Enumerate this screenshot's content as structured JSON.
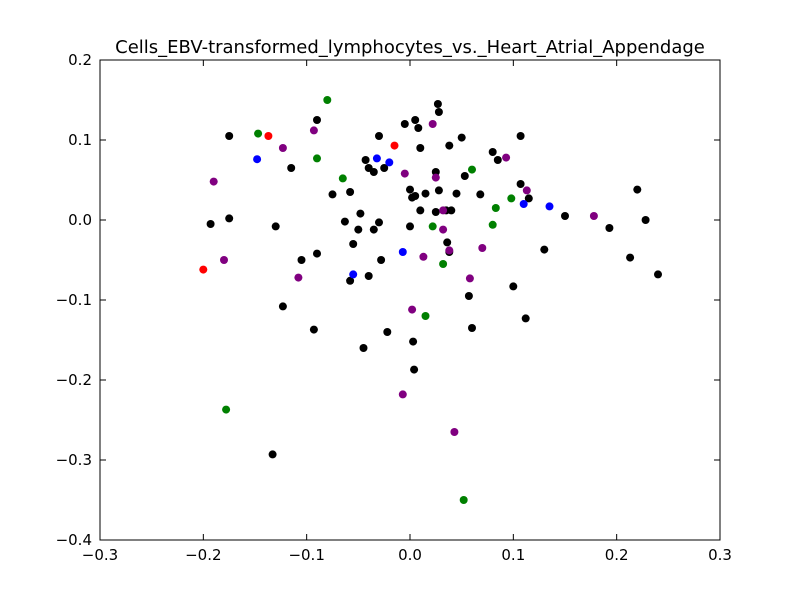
{
  "chart_data": {
    "type": "scatter",
    "title": "Cells_EBV-transformed_lymphocytes_vs._Heart_Atrial_Appendage",
    "xlabel": "",
    "ylabel": "",
    "xlim": [
      -0.3,
      0.3
    ],
    "ylim": [
      -0.4,
      0.2
    ],
    "grid": false,
    "x_ticks": [
      -0.3,
      -0.2,
      -0.1,
      0.0,
      0.1,
      0.2,
      0.3
    ],
    "x_tick_labels": [
      "−0.3",
      "−0.2",
      "−0.1",
      "0.0",
      "0.1",
      "0.2",
      "0.3"
    ],
    "y_ticks": [
      -0.4,
      -0.3,
      -0.2,
      -0.1,
      0.0,
      0.1,
      0.2
    ],
    "y_tick_labels": [
      "−0.4",
      "−0.3",
      "−0.2",
      "−0.1",
      "0.0",
      "0.1",
      "0.2"
    ],
    "series": [
      {
        "color": "#000000",
        "points": [
          [
            -0.175,
            0.105
          ],
          [
            -0.09,
            0.125
          ],
          [
            -0.115,
            0.065
          ],
          [
            -0.193,
            -0.005
          ],
          [
            -0.175,
            0.002
          ],
          [
            -0.13,
            -0.008
          ],
          [
            -0.105,
            -0.05
          ],
          [
            -0.09,
            -0.042
          ],
          [
            -0.123,
            -0.108
          ],
          [
            -0.093,
            -0.137
          ],
          [
            -0.133,
            -0.293
          ],
          [
            -0.075,
            0.032
          ],
          [
            -0.058,
            0.035
          ],
          [
            -0.063,
            -0.002
          ],
          [
            -0.05,
            -0.012
          ],
          [
            -0.048,
            0.008
          ],
          [
            -0.043,
            0.075
          ],
          [
            -0.04,
            0.065
          ],
          [
            -0.035,
            0.06
          ],
          [
            -0.03,
            0.105
          ],
          [
            -0.035,
            -0.012
          ],
          [
            -0.03,
            -0.003
          ],
          [
            -0.055,
            -0.03
          ],
          [
            -0.058,
            -0.076
          ],
          [
            -0.04,
            -0.07
          ],
          [
            -0.028,
            -0.05
          ],
          [
            -0.045,
            -0.16
          ],
          [
            -0.022,
            -0.14
          ],
          [
            -0.025,
            0.065
          ],
          [
            -0.005,
            0.12
          ],
          [
            0.0,
            0.038
          ],
          [
            0.002,
            0.028
          ],
          [
            0.005,
            0.03
          ],
          [
            0.0,
            -0.008
          ],
          [
            0.005,
            0.125
          ],
          [
            0.008,
            0.115
          ],
          [
            0.01,
            0.09
          ],
          [
            0.01,
            0.012
          ],
          [
            0.015,
            0.033
          ],
          [
            0.003,
            -0.152
          ],
          [
            0.004,
            -0.187
          ],
          [
            0.025,
            0.06
          ],
          [
            0.025,
            0.01
          ],
          [
            0.027,
            0.145
          ],
          [
            0.028,
            0.135
          ],
          [
            0.028,
            0.037
          ],
          [
            0.035,
            0.012
          ],
          [
            0.036,
            -0.028
          ],
          [
            0.04,
            0.012
          ],
          [
            0.038,
            0.093
          ],
          [
            0.045,
            0.033
          ],
          [
            0.05,
            0.103
          ],
          [
            0.053,
            0.055
          ],
          [
            0.057,
            -0.095
          ],
          [
            0.06,
            -0.135
          ],
          [
            0.068,
            0.032
          ],
          [
            0.038,
            -0.04
          ],
          [
            0.08,
            0.085
          ],
          [
            0.085,
            0.075
          ],
          [
            0.1,
            -0.083
          ],
          [
            0.107,
            0.105
          ],
          [
            0.107,
            0.045
          ],
          [
            0.112,
            -0.123
          ],
          [
            0.115,
            0.027
          ],
          [
            0.13,
            -0.037
          ],
          [
            0.15,
            0.005
          ],
          [
            0.193,
            -0.01
          ],
          [
            0.213,
            -0.047
          ],
          [
            0.22,
            0.038
          ],
          [
            0.228,
            0.0
          ],
          [
            0.24,
            -0.068
          ]
        ]
      },
      {
        "color": "#008000",
        "points": [
          [
            -0.147,
            0.108
          ],
          [
            -0.08,
            0.15
          ],
          [
            -0.09,
            0.077
          ],
          [
            -0.065,
            0.052
          ],
          [
            -0.178,
            -0.237
          ],
          [
            0.015,
            -0.12
          ],
          [
            0.022,
            -0.008
          ],
          [
            0.032,
            -0.055
          ],
          [
            0.06,
            0.063
          ],
          [
            0.052,
            -0.35
          ],
          [
            0.08,
            -0.006
          ],
          [
            0.083,
            0.015
          ],
          [
            0.098,
            0.027
          ]
        ]
      },
      {
        "color": "#0000ff",
        "points": [
          [
            -0.148,
            0.076
          ],
          [
            -0.032,
            0.077
          ],
          [
            -0.02,
            0.072
          ],
          [
            -0.055,
            -0.068
          ],
          [
            -0.007,
            -0.04
          ],
          [
            0.11,
            0.02
          ],
          [
            0.135,
            0.017
          ]
        ]
      },
      {
        "color": "#ff0000",
        "points": [
          [
            -0.2,
            -0.062
          ],
          [
            -0.137,
            0.105
          ],
          [
            -0.015,
            0.093
          ]
        ]
      },
      {
        "color": "#800080",
        "points": [
          [
            -0.19,
            0.048
          ],
          [
            -0.123,
            0.09
          ],
          [
            -0.093,
            0.112
          ],
          [
            -0.18,
            -0.05
          ],
          [
            -0.108,
            -0.072
          ],
          [
            -0.005,
            0.058
          ],
          [
            0.022,
            0.12
          ],
          [
            0.025,
            0.053
          ],
          [
            0.032,
            0.012
          ],
          [
            0.032,
            -0.012
          ],
          [
            0.038,
            -0.038
          ],
          [
            0.013,
            -0.046
          ],
          [
            0.002,
            -0.112
          ],
          [
            -0.007,
            -0.218
          ],
          [
            0.043,
            -0.265
          ],
          [
            0.058,
            -0.073
          ],
          [
            0.07,
            -0.035
          ],
          [
            0.093,
            0.078
          ],
          [
            0.113,
            0.037
          ],
          [
            0.178,
            0.005
          ]
        ]
      }
    ]
  }
}
